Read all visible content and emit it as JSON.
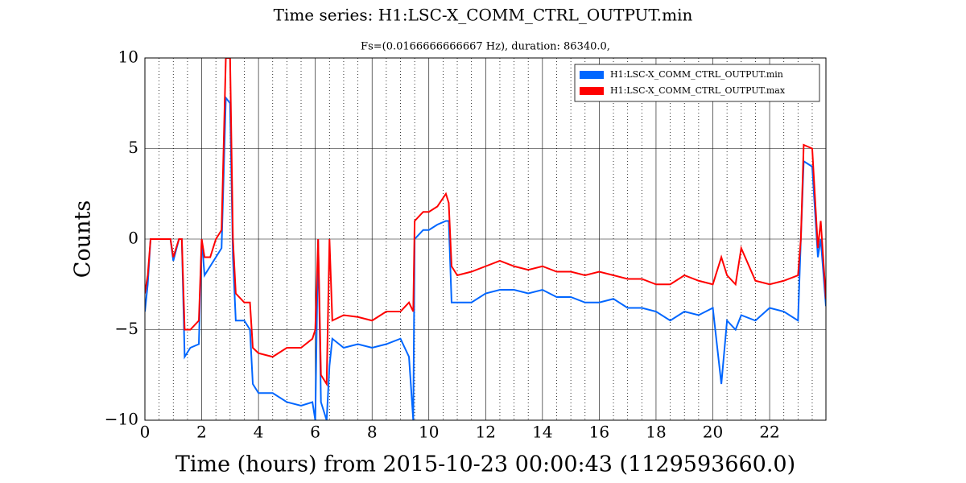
{
  "chart_data": {
    "type": "line",
    "title": "Time series:  H1:LSC-X_COMM_CTRL_OUTPUT.min",
    "subtitle": "Fs=(0.0166666666667 Hz), duration: 86340.0,",
    "x_label": "Time (hours) from 2015-10-23 00:00:43 (1129593660.0)",
    "y_label": "Counts",
    "x": [
      0,
      0.1,
      0.2,
      0.5,
      0.9,
      1.0,
      1.2,
      1.3,
      1.4,
      1.6,
      1.9,
      2.0,
      2.1,
      2.3,
      2.5,
      2.7,
      2.85,
      3.0,
      3.1,
      3.2,
      3.5,
      3.7,
      3.8,
      4.0,
      4.5,
      5.0,
      5.5,
      5.9,
      6.0,
      6.1,
      6.2,
      6.4,
      6.5,
      6.6,
      7.0,
      7.5,
      8.0,
      8.5,
      9.0,
      9.3,
      9.45,
      9.5,
      9.8,
      10.0,
      10.3,
      10.6,
      10.7,
      10.8,
      11,
      11.5,
      12,
      12.5,
      13,
      13.5,
      14,
      14.5,
      15,
      15.5,
      16,
      16.5,
      17,
      17.5,
      18,
      18.5,
      19,
      19.5,
      20,
      20.3,
      20.5,
      20.8,
      21,
      21.5,
      22,
      22.5,
      23,
      23.1,
      23.2,
      23.5,
      23.7,
      23.8,
      23.983
    ],
    "series": [
      {
        "name": "H1:LSC-X_COMM_CTRL_OUTPUT.min",
        "color": "#0066ff",
        "values": [
          -4,
          -2.5,
          0,
          0,
          0,
          -1.2,
          0,
          0,
          -6.5,
          -6,
          -5.8,
          0,
          -2,
          -1.5,
          -1,
          -0.5,
          7.8,
          7.5,
          -1,
          -4.5,
          -4.5,
          -5,
          -8,
          -8.5,
          -8.5,
          -9,
          -9.2,
          -9,
          -10,
          0,
          -9,
          -10,
          -7,
          -5.5,
          -6,
          -5.8,
          -6,
          -5.8,
          -5.5,
          -6.5,
          -10,
          0,
          0.5,
          0.5,
          0.8,
          1,
          1,
          -3.5,
          -3.5,
          -3.5,
          -3,
          -2.8,
          -2.8,
          -3,
          -2.8,
          -3.2,
          -3.2,
          -3.5,
          -3.5,
          -3.3,
          -3.8,
          -3.8,
          -4,
          -4.5,
          -4,
          -4.2,
          -3.8,
          -8,
          -4.5,
          -5,
          -4.2,
          -4.5,
          -3.8,
          -4,
          -4.5,
          0,
          4.3,
          4,
          -1,
          0,
          -3.7
        ]
      },
      {
        "name": "H1:LSC-X_COMM_CTRL_OUTPUT.max",
        "color": "#ff0000",
        "values": [
          -3,
          -2,
          0,
          0,
          0,
          -1,
          0,
          0,
          -5,
          -5,
          -4.5,
          0,
          -1,
          -1,
          0,
          0.5,
          10,
          10,
          0,
          -3,
          -3.5,
          -3.5,
          -6,
          -6.3,
          -6.5,
          -6,
          -6,
          -5.5,
          -5,
          0,
          -7.5,
          -8,
          0,
          -4.5,
          -4.2,
          -4.3,
          -4.5,
          -4,
          -4,
          -3.5,
          -4,
          1,
          1.5,
          1.5,
          1.8,
          2.5,
          2,
          -1.5,
          -2,
          -1.8,
          -1.5,
          -1.2,
          -1.5,
          -1.7,
          -1.5,
          -1.8,
          -1.8,
          -2,
          -1.8,
          -2,
          -2.2,
          -2.2,
          -2.5,
          -2.5,
          -2,
          -2.3,
          -2.5,
          -1,
          -2,
          -2.5,
          -0.5,
          -2.3,
          -2.5,
          -2.3,
          -2,
          0,
          5.2,
          5,
          -0.5,
          1,
          -3.3
        ]
      }
    ],
    "xlim": [
      0,
      23.983
    ],
    "ylim": [
      -10,
      10
    ],
    "xticks": [
      0,
      2,
      4,
      6,
      8,
      10,
      12,
      14,
      16,
      18,
      20,
      22
    ],
    "xminorticks": [
      0.5,
      1,
      1.5,
      2.5,
      3,
      3.5,
      4.5,
      5,
      5.5,
      6.5,
      7,
      7.5,
      8.5,
      9,
      9.5,
      10.5,
      11,
      11.5,
      12.5,
      13,
      13.5,
      14.5,
      15,
      15.5,
      16.5,
      17,
      17.5,
      18.5,
      19,
      19.5,
      20.5,
      21,
      21.5,
      22.5,
      23,
      23.5
    ],
    "yticks": [
      {
        "value": -10,
        "label": "−10"
      },
      {
        "value": -5,
        "label": "−5"
      },
      0,
      5,
      10
    ],
    "grid": true,
    "legend": "upper right"
  }
}
